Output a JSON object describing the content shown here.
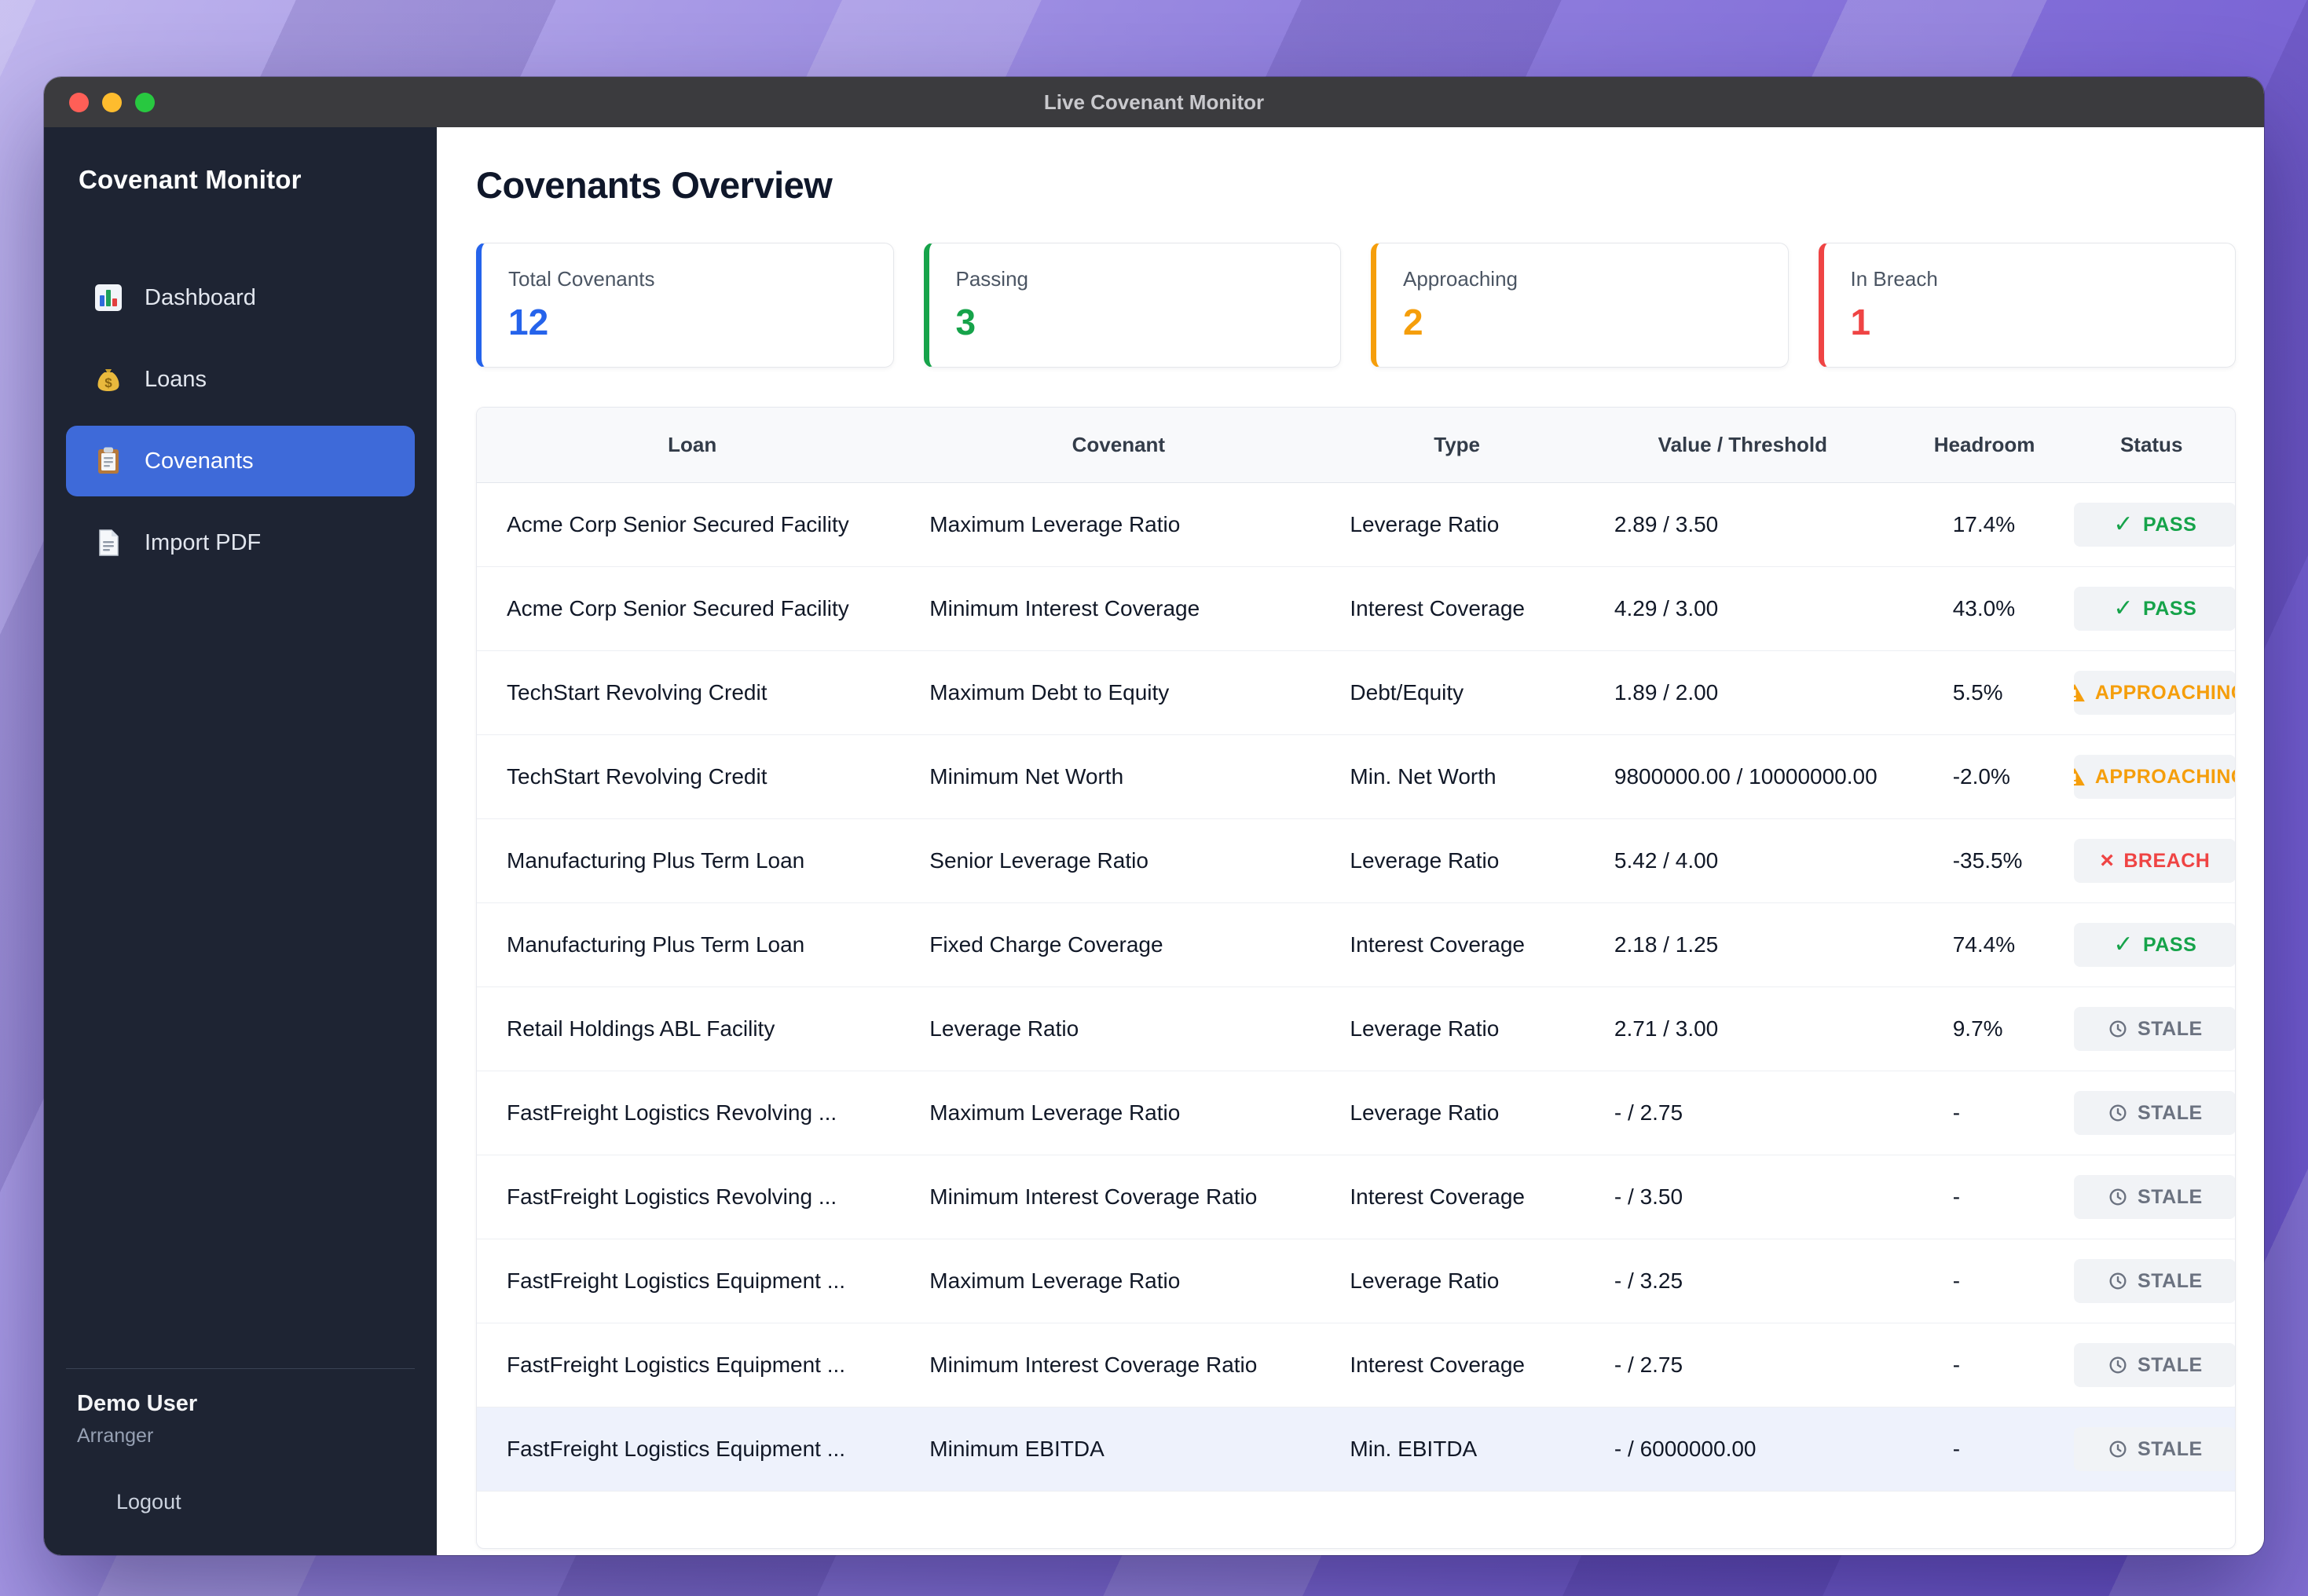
{
  "window": {
    "title": "Live Covenant Monitor"
  },
  "sidebar": {
    "title": "Covenant Monitor",
    "items": [
      {
        "label": "Dashboard",
        "icon": "bar-chart-icon"
      },
      {
        "label": "Loans",
        "icon": "money-bag-icon"
      },
      {
        "label": "Covenants",
        "icon": "clipboard-icon"
      },
      {
        "label": "Import PDF",
        "icon": "document-icon"
      }
    ],
    "user_name": "Demo User",
    "user_role": "Arranger",
    "logout_label": "Logout"
  },
  "main": {
    "heading": "Covenants Overview",
    "stats": [
      {
        "label": "Total Covenants",
        "value": "12",
        "accent": "#2563eb"
      },
      {
        "label": "Passing",
        "value": "3",
        "accent": "#16a34a"
      },
      {
        "label": "Approaching",
        "value": "2",
        "accent": "#f59e0b"
      },
      {
        "label": "In Breach",
        "value": "1",
        "accent": "#ef4444"
      }
    ],
    "table": {
      "headers": [
        "Loan",
        "Covenant",
        "Type",
        "Value / Threshold",
        "Headroom",
        "Status"
      ],
      "status_styles": {
        "PASS": {
          "color": "#16a34a",
          "icon": "check-icon"
        },
        "APPROACHING": {
          "color": "#f59e0b",
          "icon": "warning-icon"
        },
        "BREACH": {
          "color": "#ef4444",
          "icon": "x-icon"
        },
        "STALE": {
          "color": "#6b7280",
          "icon": "clock-icon"
        }
      },
      "rows": [
        {
          "loan": "Acme Corp Senior Secured Facility",
          "covenant": "Maximum Leverage Ratio",
          "type": "Leverage Ratio",
          "value": "2.89 / 3.50",
          "headroom": "17.4%",
          "status": "PASS",
          "highlighted": false
        },
        {
          "loan": "Acme Corp Senior Secured Facility",
          "covenant": "Minimum Interest Coverage",
          "type": "Interest Coverage",
          "value": "4.29 / 3.00",
          "headroom": "43.0%",
          "status": "PASS",
          "highlighted": false
        },
        {
          "loan": "TechStart Revolving Credit",
          "covenant": "Maximum Debt to Equity",
          "type": "Debt/Equity",
          "value": "1.89 / 2.00",
          "headroom": "5.5%",
          "status": "APPROACHING",
          "highlighted": false
        },
        {
          "loan": "TechStart Revolving Credit",
          "covenant": "Minimum Net Worth",
          "type": "Min. Net Worth",
          "value": "9800000.00 / 10000000.00",
          "headroom": "-2.0%",
          "status": "APPROACHING",
          "highlighted": false
        },
        {
          "loan": "Manufacturing Plus Term Loan",
          "covenant": "Senior Leverage Ratio",
          "type": "Leverage Ratio",
          "value": "5.42 / 4.00",
          "headroom": "-35.5%",
          "status": "BREACH",
          "highlighted": false
        },
        {
          "loan": "Manufacturing Plus Term Loan",
          "covenant": "Fixed Charge Coverage",
          "type": "Interest Coverage",
          "value": "2.18 / 1.25",
          "headroom": "74.4%",
          "status": "PASS",
          "highlighted": false
        },
        {
          "loan": "Retail Holdings ABL Facility",
          "covenant": "Leverage Ratio",
          "type": "Leverage Ratio",
          "value": "2.71 / 3.00",
          "headroom": "9.7%",
          "status": "STALE",
          "highlighted": false
        },
        {
          "loan": "FastFreight Logistics Revolving ...",
          "covenant": "Maximum Leverage Ratio",
          "type": "Leverage Ratio",
          "value": "- / 2.75",
          "headroom": "-",
          "status": "STALE",
          "highlighted": false
        },
        {
          "loan": "FastFreight Logistics Revolving ...",
          "covenant": "Minimum Interest Coverage Ratio",
          "type": "Interest Coverage",
          "value": "- / 3.50",
          "headroom": "-",
          "status": "STALE",
          "highlighted": false
        },
        {
          "loan": "FastFreight Logistics Equipment ...",
          "covenant": "Maximum Leverage Ratio",
          "type": "Leverage Ratio",
          "value": "- / 3.25",
          "headroom": "-",
          "status": "STALE",
          "highlighted": false
        },
        {
          "loan": "FastFreight Logistics Equipment ...",
          "covenant": "Minimum Interest Coverage Ratio",
          "type": "Interest Coverage",
          "value": "- / 2.75",
          "headroom": "-",
          "status": "STALE",
          "highlighted": false
        },
        {
          "loan": "FastFreight Logistics Equipment ...",
          "covenant": "Minimum EBITDA",
          "type": "Min. EBITDA",
          "value": "- / 6000000.00",
          "headroom": "-",
          "status": "STALE",
          "highlighted": true
        }
      ]
    }
  }
}
